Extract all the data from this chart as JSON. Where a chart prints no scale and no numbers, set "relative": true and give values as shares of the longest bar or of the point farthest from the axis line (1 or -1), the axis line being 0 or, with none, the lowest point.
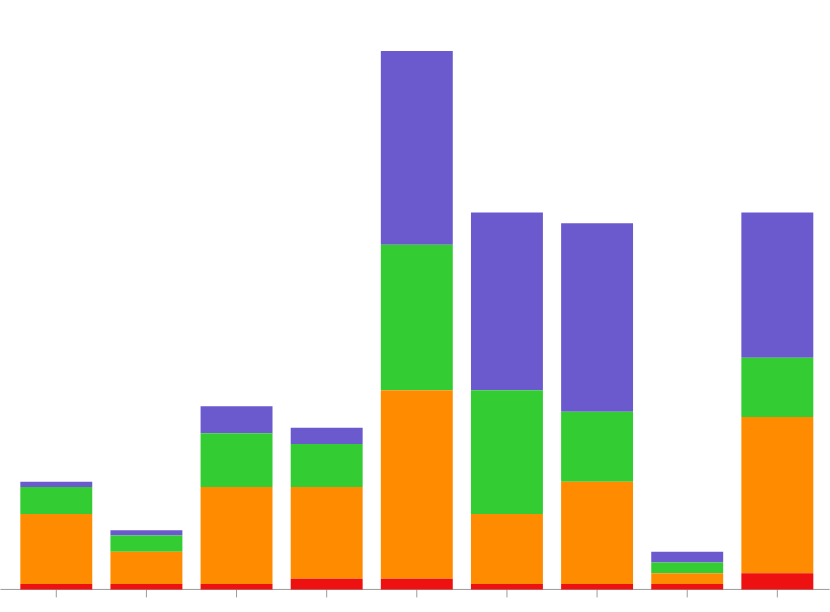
{
  "chart_data": {
    "type": "bar",
    "stacked": true,
    "relative": true,
    "categories": [
      null,
      null,
      null,
      null,
      null,
      null,
      null,
      null,
      null
    ],
    "series": [
      {
        "color": "#ee1111",
        "values": [
          0.01,
          0.01,
          0.01,
          0.02,
          0.02,
          0.01,
          0.01,
          0.01,
          0.03
        ]
      },
      {
        "color": "#ff8c00",
        "values": [
          0.13,
          0.06,
          0.18,
          0.17,
          0.35,
          0.13,
          0.19,
          0.02,
          0.29
        ]
      },
      {
        "color": "#33cc33",
        "values": [
          0.05,
          0.03,
          0.1,
          0.08,
          0.27,
          0.23,
          0.13,
          0.02,
          0.11
        ]
      },
      {
        "color": "#6a5acd",
        "values": [
          0.01,
          0.01,
          0.05,
          0.03,
          0.36,
          0.33,
          0.35,
          0.02,
          0.27
        ]
      }
    ]
  }
}
